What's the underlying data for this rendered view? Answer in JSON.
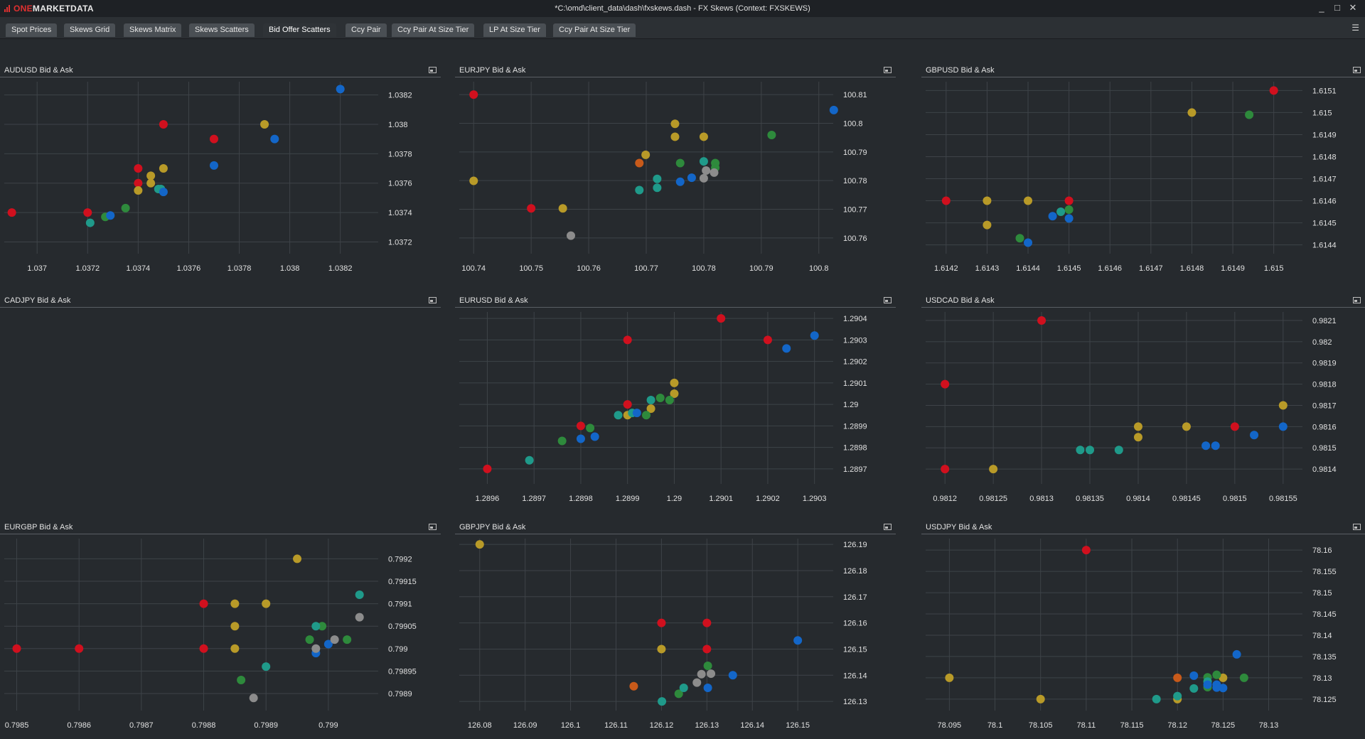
{
  "app": {
    "logo_prefix": "ONE",
    "logo_suffix": "MARKETDATA",
    "window_title": "*C:\\omd\\client_data\\dash\\fxskews.dash - FX Skews (Context: FXSKEWS)",
    "window_buttons": [
      "_",
      "□",
      "✕"
    ]
  },
  "tabs": [
    {
      "label": "Spot Prices",
      "active": false
    },
    {
      "label": "Skews Grid",
      "active": false
    },
    {
      "label": "Skews Matrix",
      "active": false
    },
    {
      "label": "Skews Scatters",
      "active": false
    },
    {
      "label": "Bid Offer Scatters",
      "active": true
    },
    {
      "label": "Ccy Pair",
      "active": false
    },
    {
      "label": "Ccy Pair At Size Tier",
      "active": false
    },
    {
      "label": "LP At Size Tier",
      "active": false
    },
    {
      "label": "Ccy Pair At Size Tier",
      "active": false
    }
  ],
  "menu_icon": "hamburger-icon",
  "colors": {
    "red": "#d0101e",
    "yellow": "#b89a28",
    "green": "#2e8a3c",
    "teal": "#1f9a8a",
    "blue": "#1366c8",
    "orange": "#c85a1a",
    "gray": "#8c8c8c"
  },
  "chart_data": [
    {
      "title": "AUDUSD Bid & Ask",
      "type": "scatter",
      "x_ticks": [
        "1.037",
        "1.0372",
        "1.0374",
        "1.0376",
        "1.0378",
        "1.038",
        "1.0382"
      ],
      "y_ticks": [
        "1.0372",
        "1.0374",
        "1.0376",
        "1.0378",
        "1.038",
        "1.0382"
      ],
      "xlim": [
        1.03687,
        1.03835
      ],
      "ylim": [
        1.03712,
        1.03829
      ],
      "points": [
        [
          1.0369,
          1.0374,
          "red"
        ],
        [
          1.0372,
          1.0374,
          "red"
        ],
        [
          1.0374,
          1.0377,
          "red"
        ],
        [
          1.0374,
          1.0376,
          "red"
        ],
        [
          1.0375,
          1.038,
          "red"
        ],
        [
          1.0377,
          1.0379,
          "red"
        ],
        [
          1.03745,
          1.03765,
          "yellow"
        ],
        [
          1.03745,
          1.0376,
          "yellow"
        ],
        [
          1.0374,
          1.03755,
          "yellow"
        ],
        [
          1.0375,
          1.0377,
          "yellow"
        ],
        [
          1.0379,
          1.038,
          "yellow"
        ],
        [
          1.03735,
          1.03743,
          "green"
        ],
        [
          1.03727,
          1.03737,
          "green"
        ],
        [
          1.03721,
          1.03733,
          "teal"
        ],
        [
          1.03748,
          1.03756,
          "teal"
        ],
        [
          1.03749,
          1.03756,
          "teal"
        ],
        [
          1.03729,
          1.03738,
          "blue"
        ],
        [
          1.0375,
          1.03754,
          "blue"
        ],
        [
          1.0377,
          1.03772,
          "blue"
        ],
        [
          1.03794,
          1.0379,
          "blue"
        ],
        [
          1.0382,
          1.03824,
          "blue"
        ]
      ]
    },
    {
      "title": "EURJPY Bid & Ask",
      "type": "scatter",
      "x_ticks": [
        "100.74",
        "100.75",
        "100.76",
        "100.77",
        "100.78",
        "100.79",
        "100.8"
      ],
      "y_ticks": [
        "100.76",
        "100.77",
        "100.78",
        "100.79",
        "100.8",
        "100.81"
      ],
      "xlim": [
        100.7375,
        100.8025
      ],
      "ylim": [
        100.7545,
        100.8145
      ],
      "points": [
        [
          100.74,
          100.81,
          "red"
        ],
        [
          100.75,
          100.7703,
          "red"
        ],
        [
          100.74,
          100.7799,
          "yellow"
        ],
        [
          100.7555,
          100.7703,
          "yellow"
        ],
        [
          100.7699,
          100.789,
          "yellow"
        ],
        [
          100.775,
          100.7998,
          "yellow"
        ],
        [
          100.775,
          100.7953,
          "yellow"
        ],
        [
          100.78,
          100.7953,
          "yellow"
        ],
        [
          100.7688,
          100.7861,
          "orange"
        ],
        [
          100.7759,
          100.7861,
          "green"
        ],
        [
          100.782,
          100.7861,
          "green"
        ],
        [
          100.782,
          100.7845,
          "green"
        ],
        [
          100.7918,
          100.7959,
          "green"
        ],
        [
          100.7688,
          100.7767,
          "teal"
        ],
        [
          100.7719,
          100.7775,
          "teal"
        ],
        [
          100.7719,
          100.7806,
          "teal"
        ],
        [
          100.78,
          100.7867,
          "teal"
        ],
        [
          100.7759,
          100.7796,
          "blue"
        ],
        [
          100.7779,
          100.781,
          "blue"
        ],
        [
          100.8026,
          100.8046,
          "blue"
        ],
        [
          100.7804,
          100.7835,
          "gray"
        ],
        [
          100.7818,
          100.7828,
          "gray"
        ],
        [
          100.78,
          100.7808,
          "gray"
        ],
        [
          100.7569,
          100.7608,
          "gray"
        ]
      ]
    },
    {
      "title": "GBPUSD Bid & Ask",
      "type": "scatter",
      "x_ticks": [
        "1.6142",
        "1.6143",
        "1.6144",
        "1.6145",
        "1.6146",
        "1.6147",
        "1.6148",
        "1.6149",
        "1.615"
      ],
      "y_ticks": [
        "1.6144",
        "1.6145",
        "1.6146",
        "1.6147",
        "1.6148",
        "1.6149",
        "1.615",
        "1.6151"
      ],
      "xlim": [
        1.61415,
        1.61507
      ],
      "ylim": [
        1.61436,
        1.61514
      ],
      "points": [
        [
          1.6142,
          1.6146,
          "red"
        ],
        [
          1.6145,
          1.6146,
          "red"
        ],
        [
          1.615,
          1.6151,
          "red"
        ],
        [
          1.6143,
          1.6146,
          "yellow"
        ],
        [
          1.6143,
          1.61449,
          "yellow"
        ],
        [
          1.6144,
          1.6146,
          "yellow"
        ],
        [
          1.6148,
          1.615,
          "yellow"
        ],
        [
          1.61438,
          1.61443,
          "green"
        ],
        [
          1.6145,
          1.61456,
          "green"
        ],
        [
          1.61494,
          1.61499,
          "green"
        ],
        [
          1.61448,
          1.61455,
          "teal"
        ],
        [
          1.6144,
          1.61441,
          "blue"
        ],
        [
          1.61446,
          1.61453,
          "blue"
        ],
        [
          1.6145,
          1.61452,
          "blue"
        ]
      ]
    },
    {
      "title": "CADJPY Bid & Ask",
      "type": "scatter",
      "x_ticks": [],
      "y_ticks": [],
      "points": []
    },
    {
      "title": "EURUSD Bid & Ask",
      "type": "scatter",
      "x_ticks": [
        "1.2896",
        "1.2897",
        "1.2898",
        "1.2899",
        "1.29",
        "1.2901",
        "1.2902",
        "1.2903"
      ],
      "y_ticks": [
        "1.2897",
        "1.2898",
        "1.2899",
        "1.29",
        "1.2901",
        "1.2902",
        "1.2903",
        "1.2904"
      ],
      "xlim": [
        1.28954,
        1.29034
      ],
      "ylim": [
        1.28963,
        1.29043
      ],
      "points": [
        [
          1.2896,
          1.2897,
          "red"
        ],
        [
          1.2898,
          1.2899,
          "red"
        ],
        [
          1.2899,
          1.29,
          "red"
        ],
        [
          1.2899,
          1.2903,
          "red"
        ],
        [
          1.2901,
          1.2904,
          "red"
        ],
        [
          1.2902,
          1.2903,
          "red"
        ],
        [
          1.2899,
          1.28995,
          "yellow"
        ],
        [
          1.28995,
          1.28998,
          "yellow"
        ],
        [
          1.29,
          1.29005,
          "yellow"
        ],
        [
          1.29,
          1.2901,
          "yellow"
        ],
        [
          1.28976,
          1.28983,
          "green"
        ],
        [
          1.28982,
          1.28989,
          "green"
        ],
        [
          1.28994,
          1.28995,
          "green"
        ],
        [
          1.28997,
          1.29003,
          "green"
        ],
        [
          1.28999,
          1.29002,
          "green"
        ],
        [
          1.28969,
          1.28974,
          "teal"
        ],
        [
          1.28988,
          1.28995,
          "teal"
        ],
        [
          1.28995,
          1.29002,
          "teal"
        ],
        [
          1.28991,
          1.28996,
          "teal"
        ],
        [
          1.2898,
          1.28984,
          "blue"
        ],
        [
          1.28983,
          1.28985,
          "blue"
        ],
        [
          1.28992,
          1.28996,
          "blue"
        ],
        [
          1.29024,
          1.29026,
          "blue"
        ],
        [
          1.2903,
          1.29032,
          "blue"
        ]
      ]
    },
    {
      "title": "USDCAD Bid & Ask",
      "type": "scatter",
      "x_ticks": [
        "0.9812",
        "0.98125",
        "0.9813",
        "0.98135",
        "0.9814",
        "0.98145",
        "0.9815",
        "0.98155"
      ],
      "y_ticks": [
        "0.9814",
        "0.9815",
        "0.9816",
        "0.9817",
        "0.9818",
        "0.9819",
        "0.982",
        "0.9821"
      ],
      "xlim": [
        0.98118,
        0.98157
      ],
      "ylim": [
        0.98133,
        0.98214
      ],
      "points": [
        [
          0.9812,
          0.9814,
          "red"
        ],
        [
          0.9812,
          0.9818,
          "red"
        ],
        [
          0.9813,
          0.9821,
          "red"
        ],
        [
          0.9815,
          0.9816,
          "red"
        ],
        [
          0.98125,
          0.9814,
          "yellow"
        ],
        [
          0.9814,
          0.9816,
          "yellow"
        ],
        [
          0.9814,
          0.98155,
          "yellow"
        ],
        [
          0.98145,
          0.9816,
          "yellow"
        ],
        [
          0.98155,
          0.9817,
          "yellow"
        ],
        [
          0.98134,
          0.98149,
          "teal"
        ],
        [
          0.98135,
          0.98149,
          "teal"
        ],
        [
          0.98138,
          0.98149,
          "teal"
        ],
        [
          0.98147,
          0.98151,
          "blue"
        ],
        [
          0.98148,
          0.98151,
          "blue"
        ],
        [
          0.98152,
          0.98156,
          "blue"
        ],
        [
          0.98155,
          0.9816,
          "blue"
        ]
      ]
    },
    {
      "title": "EURGBP Bid & Ask",
      "type": "scatter",
      "x_ticks": [
        "0.7985",
        "0.7986",
        "0.7987",
        "0.7988",
        "0.7989",
        "0.799"
      ],
      "y_ticks": [
        "0.7989",
        "0.79895",
        "0.799",
        "0.79905",
        "0.7991",
        "0.79915",
        "0.7992"
      ],
      "xlim": [
        0.79848,
        0.79908
      ],
      "ylim": [
        0.798862,
        0.799245
      ],
      "points": [
        [
          0.7985,
          0.799,
          "red"
        ],
        [
          0.7986,
          0.799,
          "red"
        ],
        [
          0.7988,
          0.799,
          "red"
        ],
        [
          0.7988,
          0.7991,
          "red"
        ],
        [
          0.79885,
          0.799,
          "yellow"
        ],
        [
          0.79885,
          0.79905,
          "yellow"
        ],
        [
          0.79885,
          0.7991,
          "yellow"
        ],
        [
          0.7989,
          0.7991,
          "yellow"
        ],
        [
          0.79895,
          0.7992,
          "yellow"
        ],
        [
          0.79886,
          0.79893,
          "green"
        ],
        [
          0.79897,
          0.79902,
          "green"
        ],
        [
          0.79899,
          0.79905,
          "green"
        ],
        [
          0.79903,
          0.79902,
          "green"
        ],
        [
          0.7989,
          0.79896,
          "teal"
        ],
        [
          0.79898,
          0.79905,
          "teal"
        ],
        [
          0.79905,
          0.79912,
          "teal"
        ],
        [
          0.79898,
          0.79899,
          "blue"
        ],
        [
          0.799,
          0.79901,
          "blue"
        ],
        [
          0.79888,
          0.79889,
          "gray"
        ],
        [
          0.79898,
          0.799,
          "gray"
        ],
        [
          0.79901,
          0.79902,
          "gray"
        ],
        [
          0.79905,
          0.79907,
          "gray"
        ]
      ]
    },
    {
      "title": "GBPJPY Bid & Ask",
      "type": "scatter",
      "x_ticks": [
        "126.08",
        "126.09",
        "126.1",
        "126.11",
        "126.12",
        "126.13",
        "126.14",
        "126.15"
      ],
      "y_ticks": [
        "126.13",
        "126.14",
        "126.15",
        "126.16",
        "126.17",
        "126.18",
        "126.19"
      ],
      "xlim": [
        126.0755,
        126.1578
      ],
      "ylim": [
        126.1265,
        126.1922
      ],
      "points": [
        [
          126.12,
          126.16,
          "red"
        ],
        [
          126.13,
          126.16,
          "red"
        ],
        [
          126.13,
          126.15,
          "red"
        ],
        [
          126.08,
          126.19,
          "yellow"
        ],
        [
          126.12,
          126.15,
          "yellow"
        ],
        [
          126.1139,
          126.1358,
          "orange"
        ],
        [
          126.1238,
          126.1329,
          "green"
        ],
        [
          126.1302,
          126.1436,
          "green"
        ],
        [
          126.1201,
          126.13,
          "teal"
        ],
        [
          126.1249,
          126.1352,
          "teal"
        ],
        [
          126.1302,
          126.1352,
          "blue"
        ],
        [
          126.1357,
          126.14,
          "blue"
        ],
        [
          126.15,
          126.1533,
          "blue"
        ],
        [
          126.1278,
          126.1372,
          "gray"
        ],
        [
          126.1288,
          126.1404,
          "gray"
        ],
        [
          126.1309,
          126.1406,
          "gray"
        ]
      ]
    },
    {
      "title": "USDJPY Bid & Ask",
      "type": "scatter",
      "x_ticks": [
        "78.095",
        "78.1",
        "78.105",
        "78.11",
        "78.115",
        "78.12",
        "78.125",
        "78.13"
      ],
      "y_ticks": [
        "78.125",
        "78.13",
        "78.135",
        "78.14",
        "78.145",
        "78.15",
        "78.155",
        "78.16"
      ],
      "xlim": [
        78.0924,
        78.1337
      ],
      "ylim": [
        78.1223,
        78.1627
      ],
      "points": [
        [
          78.11,
          78.16,
          "red"
        ],
        [
          78.12,
          78.13,
          "orange"
        ],
        [
          78.095,
          78.13,
          "yellow"
        ],
        [
          78.105,
          78.125,
          "yellow"
        ],
        [
          78.12,
          78.125,
          "yellow"
        ],
        [
          78.125,
          78.13,
          "yellow"
        ],
        [
          78.1233,
          78.1301,
          "green"
        ],
        [
          78.1233,
          78.1278,
          "green"
        ],
        [
          78.1243,
          78.1307,
          "green"
        ],
        [
          78.1273,
          78.13,
          "green"
        ],
        [
          78.1177,
          78.125,
          "teal"
        ],
        [
          78.12,
          78.1257,
          "teal"
        ],
        [
          78.1218,
          78.1275,
          "teal"
        ],
        [
          78.1233,
          78.1291,
          "teal"
        ],
        [
          78.1218,
          78.1305,
          "blue"
        ],
        [
          78.1233,
          78.1284,
          "blue"
        ],
        [
          78.1243,
          78.1284,
          "blue"
        ],
        [
          78.1243,
          78.1277,
          "blue"
        ],
        [
          78.125,
          78.1276,
          "blue"
        ],
        [
          78.1265,
          78.1355,
          "blue"
        ]
      ]
    }
  ]
}
